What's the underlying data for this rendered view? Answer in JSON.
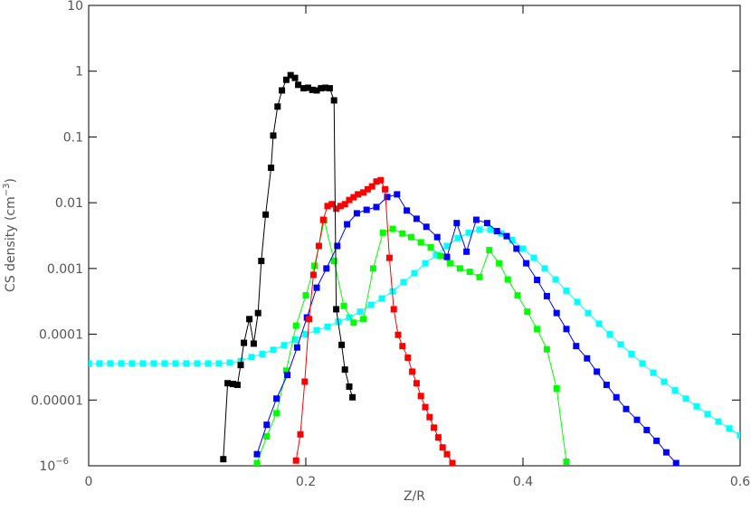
{
  "chart_data": {
    "type": "line",
    "xlabel": "Z/R",
    "ylabel": "CS density (cm",
    "ylabel_exponent": "−3",
    "ylabel_suffix": ")",
    "xlim": [
      0,
      0.6
    ],
    "xticks": [
      0,
      0.2,
      0.4,
      0.6
    ],
    "ylim": [
      1e-06,
      10
    ],
    "ylog": true,
    "yticks": [
      {
        "value": 1e-06,
        "label": "10",
        "label_exponent": "−6"
      },
      1e-05,
      0.0001,
      0.001,
      0.01,
      0.1,
      1,
      10
    ],
    "grid": false,
    "series": [
      {
        "color": "#00ffff",
        "x": [
          0,
          0.01,
          0.02,
          0.03,
          0.04,
          0.05,
          0.06,
          0.07,
          0.08,
          0.09,
          0.1,
          0.11,
          0.12,
          0.13,
          0.14,
          0.15,
          0.16,
          0.17,
          0.18,
          0.19,
          0.2,
          0.21,
          0.22,
          0.23,
          0.24,
          0.25,
          0.26,
          0.27,
          0.28,
          0.29,
          0.3,
          0.31,
          0.32,
          0.33,
          0.34,
          0.35,
          0.36,
          0.37,
          0.38,
          0.39,
          0.4,
          0.41,
          0.42,
          0.43,
          0.44,
          0.45,
          0.46,
          0.47,
          0.48,
          0.49,
          0.5,
          0.51,
          0.52,
          0.53,
          0.54,
          0.55,
          0.56,
          0.57,
          0.58,
          0.59,
          0.6
        ],
        "values": [
          3.6e-05,
          3.6e-05,
          3.6e-05,
          3.6e-05,
          3.6e-05,
          3.6e-05,
          3.6e-05,
          3.6e-05,
          3.6e-05,
          3.6e-05,
          3.6e-05,
          3.6e-05,
          3.6e-05,
          3.7e-05,
          3.9e-05,
          4.5e-05,
          5e-05,
          5.8e-05,
          6.8e-05,
          8.3e-05,
          0.0001,
          0.000115,
          0.00013,
          0.000155,
          0.00018,
          0.00022,
          0.00028,
          0.00035,
          0.00045,
          0.00062,
          0.00085,
          0.0012,
          0.0016,
          0.0022,
          0.0029,
          0.0035,
          0.0039,
          0.0039,
          0.0034,
          0.0027,
          0.002,
          0.00145,
          0.001,
          0.00068,
          0.00046,
          0.00031,
          0.00021,
          0.000145,
          0.0001,
          7e-05,
          5e-05,
          3.6e-05,
          2.6e-05,
          1.9e-05,
          1.4e-05,
          1.05e-05,
          8e-06,
          6.1e-06,
          4.7e-06,
          3.7e-06,
          2.9e-06
        ]
      },
      {
        "color": "#00ff00",
        "x": [
          0.155,
          0.164,
          0.173,
          0.182,
          0.191,
          0.2,
          0.208,
          0.217,
          0.226,
          0.235,
          0.244,
          0.253,
          0.262,
          0.271,
          0.28,
          0.289,
          0.297,
          0.306,
          0.315,
          0.324,
          0.333,
          0.342,
          0.351,
          0.36,
          0.369,
          0.378,
          0.386,
          0.395,
          0.404,
          0.413,
          0.422,
          0.431,
          0.44
        ],
        "values": [
          1.1e-06,
          2.8e-06,
          6.3e-06,
          2.8e-05,
          0.000135,
          0.00039,
          0.0011,
          0.0054,
          0.0013,
          0.00027,
          0.00015,
          0.00017,
          0.001,
          0.0035,
          0.004,
          0.0034,
          0.003,
          0.0025,
          0.0021,
          0.00155,
          0.0012,
          0.001,
          0.00089,
          0.00074,
          0.0019,
          0.0012,
          0.00068,
          0.00039,
          0.00022,
          0.00012,
          5.9e-05,
          1.5e-05,
          1.15e-06
        ]
      },
      {
        "color": "#0000ff",
        "x": [
          0.155,
          0.164,
          0.173,
          0.183,
          0.192,
          0.201,
          0.21,
          0.219,
          0.229,
          0.238,
          0.247,
          0.256,
          0.265,
          0.275,
          0.284,
          0.293,
          0.302,
          0.311,
          0.321,
          0.33,
          0.339,
          0.348,
          0.357,
          0.367,
          0.376,
          0.385,
          0.394,
          0.403,
          0.413,
          0.422,
          0.431,
          0.44,
          0.449,
          0.459,
          0.468,
          0.477,
          0.486,
          0.495,
          0.505,
          0.514,
          0.523,
          0.532,
          0.541
        ],
        "values": [
          1.5e-06,
          4.2e-06,
          1.05e-05,
          2.4e-05,
          6.3e-05,
          0.00018,
          0.00051,
          0.001,
          0.0022,
          0.0047,
          0.0069,
          0.0078,
          0.0086,
          0.0122,
          0.0134,
          0.0076,
          0.0057,
          0.0043,
          0.003,
          0.0015,
          0.0049,
          0.0018,
          0.0055,
          0.0049,
          0.0037,
          0.0031,
          0.002,
          0.0012,
          0.00067,
          0.00038,
          0.00021,
          0.00012,
          6.6e-05,
          4.3e-05,
          2.7e-05,
          1.7e-05,
          1.1e-05,
          7.3e-06,
          5e-06,
          3.5e-06,
          2.4e-06,
          1.6e-06,
          1.1e-06
        ]
      },
      {
        "color": "#ff0000",
        "x": [
          0.191,
          0.195,
          0.199,
          0.203,
          0.207,
          0.212,
          0.216,
          0.22,
          0.224,
          0.228,
          0.232,
          0.236,
          0.24,
          0.244,
          0.248,
          0.253,
          0.257,
          0.261,
          0.265,
          0.269,
          0.273,
          0.277,
          0.281,
          0.285,
          0.289,
          0.294,
          0.298,
          0.302,
          0.306,
          0.31,
          0.314,
          0.318,
          0.322,
          0.326,
          0.33,
          0.335
        ],
        "values": [
          1.2e-06,
          3e-06,
          1.9e-05,
          0.00017,
          0.0008,
          0.0022,
          0.0055,
          0.0089,
          0.0095,
          0.0081,
          0.0089,
          0.0095,
          0.011,
          0.0121,
          0.0134,
          0.0143,
          0.016,
          0.0177,
          0.021,
          0.022,
          0.016,
          0.00145,
          0.00024,
          9.8e-05,
          6.6e-05,
          4.4e-05,
          2.7e-05,
          1.8e-05,
          1.15e-05,
          7.8e-06,
          5.5e-06,
          3.8e-06,
          2.7e-06,
          1.9e-06,
          1.5e-06,
          1.1e-06
        ]
      },
      {
        "color": "#000000",
        "x": [
          0.124,
          0.128,
          0.133,
          0.137,
          0.14,
          0.143,
          0.148,
          0.152,
          0.156,
          0.159,
          0.163,
          0.168,
          0.17,
          0.174,
          0.178,
          0.182,
          0.186,
          0.19,
          0.193,
          0.198,
          0.202,
          0.206,
          0.21,
          0.214,
          0.218,
          0.222,
          0.226,
          0.228,
          0.233,
          0.236,
          0.24,
          0.243
        ],
        "values": [
          1.26e-06,
          1.8e-05,
          1.75e-05,
          1.7e-05,
          3.4e-05,
          7.4e-05,
          0.00017,
          7.2e-05,
          0.00021,
          0.0013,
          0.0066,
          0.034,
          0.105,
          0.29,
          0.51,
          0.74,
          0.87,
          0.79,
          0.62,
          0.55,
          0.56,
          0.52,
          0.51,
          0.55,
          0.56,
          0.55,
          0.36,
          0.00024,
          6.9e-05,
          2.9e-05,
          1.6e-05,
          1.1e-05
        ]
      }
    ]
  }
}
